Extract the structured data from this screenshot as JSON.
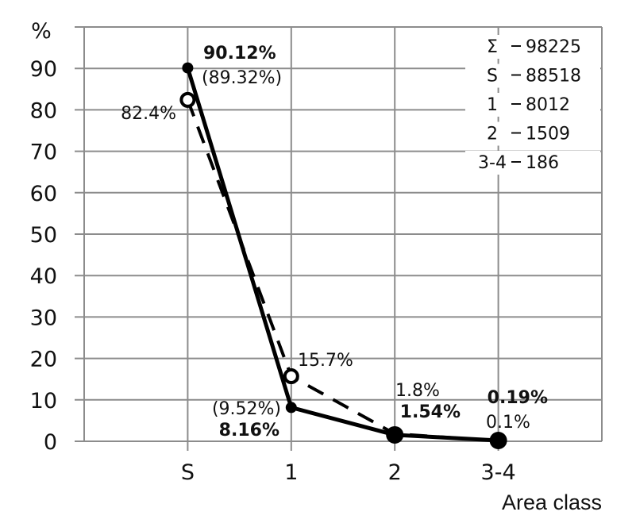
{
  "chart_data": {
    "type": "line",
    "categories": [
      "S",
      "1",
      "2",
      "3-4"
    ],
    "ylabel": "%",
    "xlabel": "Area class",
    "ylim": [
      0,
      100
    ],
    "yticks": [
      0,
      10,
      20,
      30,
      40,
      50,
      60,
      70,
      80,
      90
    ],
    "grid": true,
    "series": [
      {
        "style": "solid",
        "marker": "filled-circle",
        "values": [
          90.12,
          8.16,
          1.54,
          0.19
        ],
        "labels": [
          "90.12%",
          "8.16%",
          "1.54%",
          "0.19%"
        ],
        "secondary_labels": [
          "(89.32%)",
          "(9.52%)",
          "",
          ""
        ]
      },
      {
        "style": "dashed",
        "marker": "open-circle",
        "values": [
          82.4,
          15.7,
          1.8,
          0.1
        ],
        "labels": [
          "82.4%",
          "15.7%",
          "1.8%",
          "0.1%"
        ]
      }
    ],
    "legend_placement": "top-right",
    "legend": [
      {
        "key": "Σ",
        "value": "98225"
      },
      {
        "key": "S",
        "value": "88518"
      },
      {
        "key": "1",
        "value": "8012"
      },
      {
        "key": "2",
        "value": "1509"
      },
      {
        "key": "3-4",
        "value": "186"
      }
    ],
    "color": "#000000",
    "grid_color": "#8c8c8c"
  }
}
